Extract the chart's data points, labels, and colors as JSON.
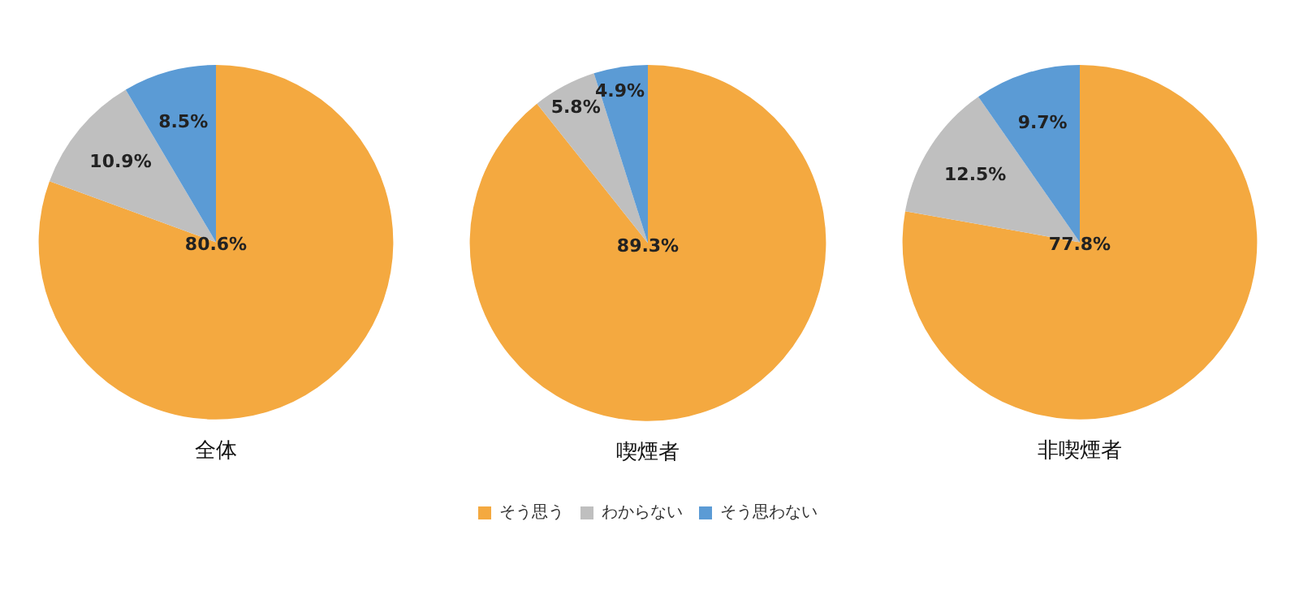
{
  "chart_data": [
    {
      "type": "pie",
      "title": "全体",
      "categories": [
        null,
        null,
        null
      ],
      "values": [
        80.6,
        10.9,
        8.5
      ],
      "value_labels": [
        "80.6%",
        "10.9%",
        "8.5%"
      ],
      "colors": [
        "#f4a940",
        "#bfbfbf",
        "#5b9bd5"
      ],
      "legend": false
    },
    {
      "type": "pie",
      "title": "喫煙者",
      "categories": [
        "そう思う",
        "わからない",
        "そう思わない"
      ],
      "values": [
        89.3,
        5.8,
        4.9
      ],
      "value_labels": [
        "89.3%",
        "5.8%",
        "4.9%"
      ],
      "colors": [
        "#f4a940",
        "#bfbfbf",
        "#5b9bd5"
      ],
      "legend": "bottom"
    },
    {
      "type": "pie",
      "title": "非喫煙者",
      "categories": [
        null,
        null,
        null
      ],
      "values": [
        77.8,
        12.5,
        9.7
      ],
      "value_labels": [
        "77.8%",
        "12.5%",
        "9.7%"
      ],
      "colors": [
        "#f4a940",
        "#bfbfbf",
        "#5b9bd5"
      ],
      "legend": false
    }
  ]
}
